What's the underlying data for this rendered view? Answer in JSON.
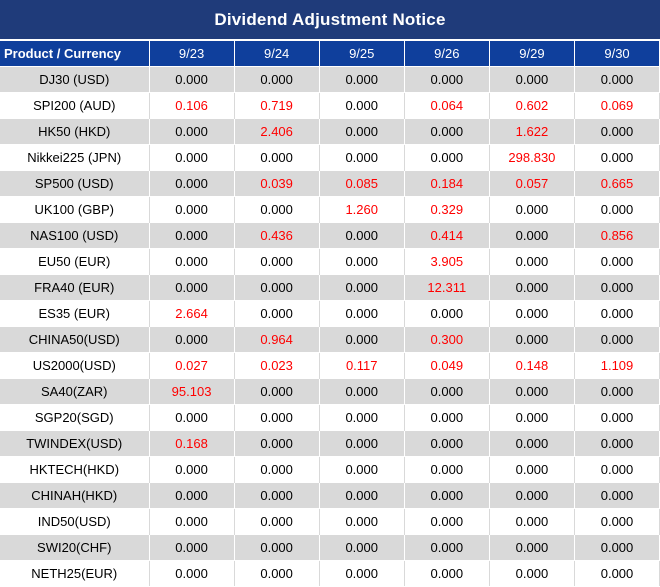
{
  "title": "Dividend Adjustment Notice",
  "header": {
    "product_label": "Product / Currency",
    "dates": [
      "9/23",
      "9/24",
      "9/25",
      "9/26",
      "9/29",
      "9/30"
    ]
  },
  "rows": [
    {
      "product": "DJ30 (USD)",
      "values": [
        "0.000",
        "0.000",
        "0.000",
        "0.000",
        "0.000",
        "0.000"
      ]
    },
    {
      "product": "SPI200 (AUD)",
      "values": [
        "0.106",
        "0.719",
        "0.000",
        "0.064",
        "0.602",
        "0.069"
      ]
    },
    {
      "product": "HK50 (HKD)",
      "values": [
        "0.000",
        "2.406",
        "0.000",
        "0.000",
        "1.622",
        "0.000"
      ]
    },
    {
      "product": "Nikkei225 (JPN)",
      "values": [
        "0.000",
        "0.000",
        "0.000",
        "0.000",
        "298.830",
        "0.000"
      ]
    },
    {
      "product": "SP500 (USD)",
      "values": [
        "0.000",
        "0.039",
        "0.085",
        "0.184",
        "0.057",
        "0.665"
      ]
    },
    {
      "product": "UK100 (GBP)",
      "values": [
        "0.000",
        "0.000",
        "1.260",
        "0.329",
        "0.000",
        "0.000"
      ]
    },
    {
      "product": "NAS100 (USD)",
      "values": [
        "0.000",
        "0.436",
        "0.000",
        "0.414",
        "0.000",
        "0.856"
      ]
    },
    {
      "product": "EU50 (EUR)",
      "values": [
        "0.000",
        "0.000",
        "0.000",
        "3.905",
        "0.000",
        "0.000"
      ]
    },
    {
      "product": "FRA40 (EUR)",
      "values": [
        "0.000",
        "0.000",
        "0.000",
        "12.311",
        "0.000",
        "0.000"
      ]
    },
    {
      "product": "ES35 (EUR)",
      "values": [
        "2.664",
        "0.000",
        "0.000",
        "0.000",
        "0.000",
        "0.000"
      ]
    },
    {
      "product": "CHINA50(USD)",
      "values": [
        "0.000",
        "0.964",
        "0.000",
        "0.300",
        "0.000",
        "0.000"
      ]
    },
    {
      "product": "US2000(USD)",
      "values": [
        "0.027",
        "0.023",
        "0.117",
        "0.049",
        "0.148",
        "1.109"
      ]
    },
    {
      "product": "SA40(ZAR)",
      "values": [
        "95.103",
        "0.000",
        "0.000",
        "0.000",
        "0.000",
        "0.000"
      ]
    },
    {
      "product": "SGP20(SGD)",
      "values": [
        "0.000",
        "0.000",
        "0.000",
        "0.000",
        "0.000",
        "0.000"
      ]
    },
    {
      "product": "TWINDEX(USD)",
      "values": [
        "0.168",
        "0.000",
        "0.000",
        "0.000",
        "0.000",
        "0.000"
      ]
    },
    {
      "product": "HKTECH(HKD)",
      "values": [
        "0.000",
        "0.000",
        "0.000",
        "0.000",
        "0.000",
        "0.000"
      ]
    },
    {
      "product": "CHINAH(HKD)",
      "values": [
        "0.000",
        "0.000",
        "0.000",
        "0.000",
        "0.000",
        "0.000"
      ]
    },
    {
      "product": "IND50(USD)",
      "values": [
        "0.000",
        "0.000",
        "0.000",
        "0.000",
        "0.000",
        "0.000"
      ]
    },
    {
      "product": "SWI20(CHF)",
      "values": [
        "0.000",
        "0.000",
        "0.000",
        "0.000",
        "0.000",
        "0.000"
      ]
    },
    {
      "product": "NETH25(EUR)",
      "values": [
        "0.000",
        "0.000",
        "0.000",
        "0.000",
        "0.000",
        "0.000"
      ]
    }
  ],
  "colors": {
    "title_background": "#1f3b7a",
    "header_background": "#0f3f9c",
    "stripe_gray": "#d9d9d9",
    "positive_value": "#ff0000",
    "zero_value": "#000000"
  }
}
